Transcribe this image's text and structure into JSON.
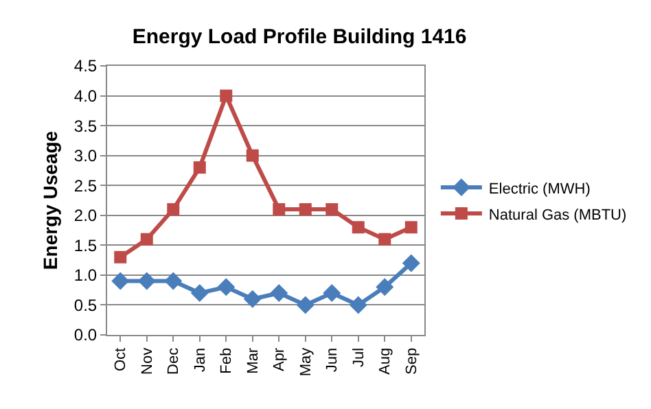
{
  "chart_data": {
    "type": "line",
    "title": "Energy Load Profile Building 1416",
    "ylabel": "Energy Useage",
    "categories": [
      "Oct",
      "Nov",
      "Dec",
      "Jan",
      "Feb",
      "Mar",
      "Apr",
      "May",
      "Jun",
      "Jul",
      "Aug",
      "Sep"
    ],
    "series": [
      {
        "name": "Electric (MWH)",
        "color": "#4a7ebb",
        "marker": "diamond",
        "values": [
          0.9,
          0.9,
          0.9,
          0.7,
          0.8,
          0.6,
          0.7,
          0.5,
          0.7,
          0.5,
          0.8,
          1.2
        ]
      },
      {
        "name": "Natural Gas (MBTU)",
        "color": "#be4b48",
        "marker": "square",
        "values": [
          1.3,
          1.6,
          2.1,
          2.8,
          4.0,
          3.0,
          2.1,
          2.1,
          2.1,
          1.8,
          1.6,
          1.8
        ]
      }
    ],
    "ylim": [
      0,
      4.5
    ],
    "yticks": [
      {
        "value": 0,
        "label": "0.0"
      },
      {
        "value": 0.5,
        "label": "0.5"
      },
      {
        "value": 1,
        "label": "1.0"
      },
      {
        "value": 1.5,
        "label": "1.5"
      },
      {
        "value": 2,
        "label": "2.0"
      },
      {
        "value": 2.5,
        "label": "2.5"
      },
      {
        "value": 3,
        "label": "3.0"
      },
      {
        "value": 3.5,
        "label": "3.5"
      },
      {
        "value": 4,
        "label": "4.0"
      },
      {
        "value": 4.5,
        "label": "4.5"
      }
    ],
    "grid": "y",
    "legend": "right",
    "line_style": "solid"
  }
}
